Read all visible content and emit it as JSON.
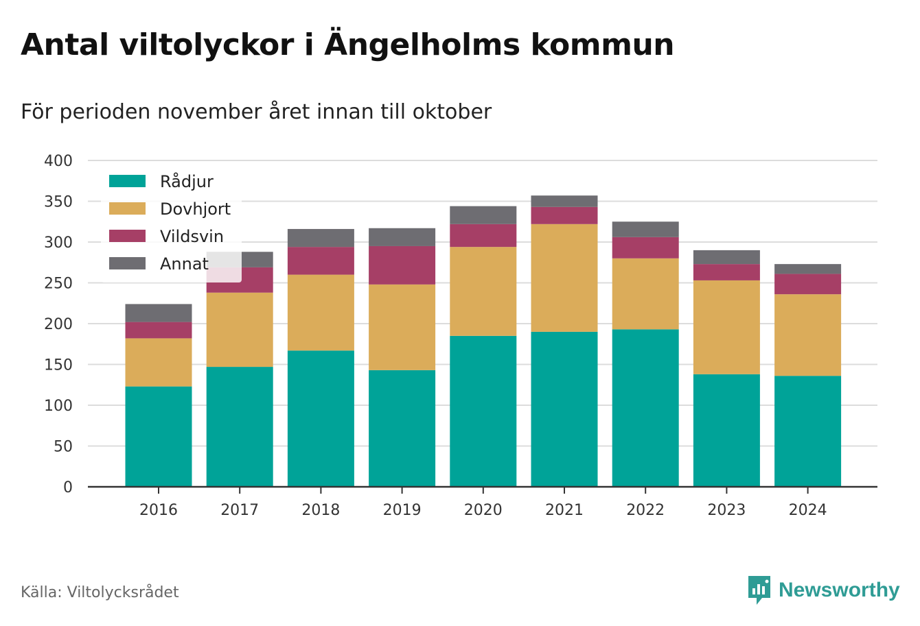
{
  "title": "Antal viltolyckor i Ängelholms kommun",
  "subtitle": "För perioden november året innan till oktober",
  "source": "Källa: Viltolycksrådet",
  "brand": {
    "name": "Newsworthy",
    "icon": "newsworthy-logo-icon",
    "color": "#2f9c95"
  },
  "chart_data": {
    "type": "bar",
    "stacked": true,
    "categories": [
      "2016",
      "2017",
      "2018",
      "2019",
      "2020",
      "2021",
      "2022",
      "2023",
      "2024"
    ],
    "series": [
      {
        "name": "Rådjur",
        "color": "#00a398",
        "values": [
          123,
          147,
          167,
          143,
          185,
          190,
          193,
          138,
          136
        ]
      },
      {
        "name": "Dovhjort",
        "color": "#dbac5a",
        "values": [
          59,
          91,
          93,
          105,
          109,
          132,
          87,
          115,
          100
        ]
      },
      {
        "name": "Vildsvin",
        "color": "#a63f66",
        "values": [
          20,
          31,
          34,
          47,
          28,
          21,
          26,
          20,
          25
        ]
      },
      {
        "name": "Annat",
        "color": "#6e6d72",
        "values": [
          22,
          19,
          22,
          22,
          22,
          14,
          19,
          17,
          12
        ]
      }
    ],
    "ylim": [
      0,
      400
    ],
    "yticks": [
      0,
      50,
      100,
      150,
      200,
      250,
      300,
      350,
      400
    ],
    "grid": true,
    "legend_position": "top-left",
    "xlabel": "",
    "ylabel": ""
  }
}
